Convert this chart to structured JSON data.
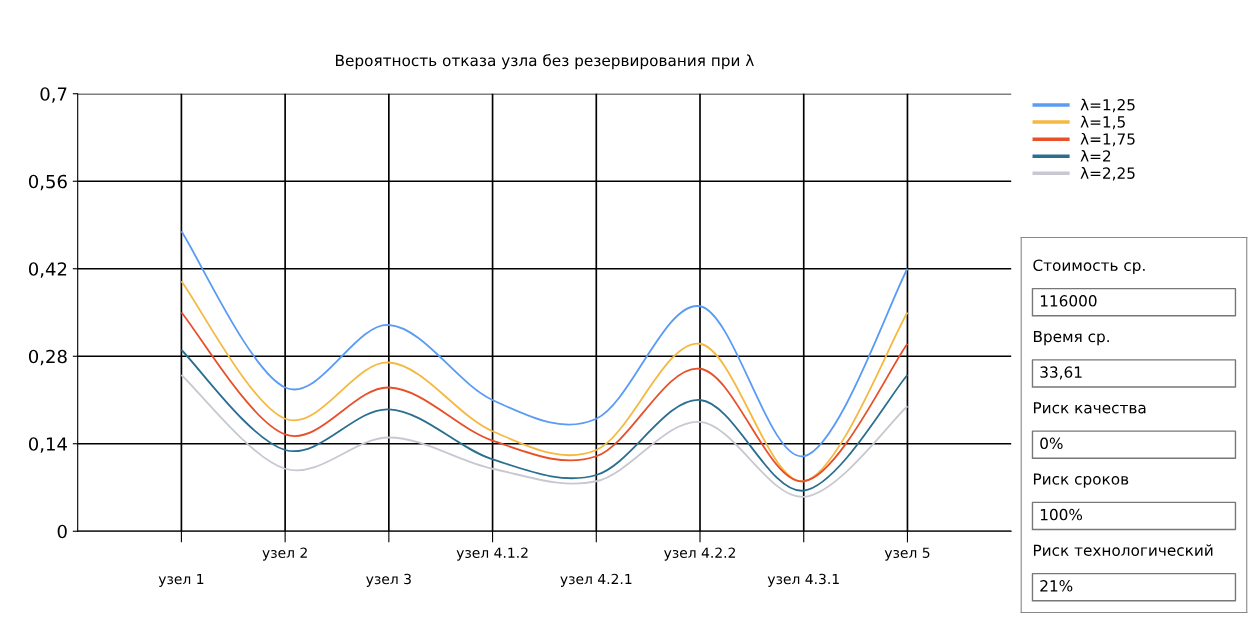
{
  "chart_data": [
    {
      "type": "line",
      "title": "Вероятность отказа узла без резервирования при λ",
      "categories": [
        "узел 1",
        "узел 2",
        "узел 3",
        "узел 4.1.2",
        "узел 4.2.1",
        "узел 4.2.2",
        "узел 4.3.1",
        "узел 5"
      ],
      "series": [
        {
          "name": "λ=1,25",
          "color": "#5a9bf5",
          "values": [
            0.48,
            0.23,
            0.33,
            0.21,
            0.18,
            0.36,
            0.12,
            0.42
          ]
        },
        {
          "name": "λ=1,5",
          "color": "#f5b942",
          "values": [
            0.4,
            0.18,
            0.27,
            0.16,
            0.13,
            0.3,
            0.08,
            0.35
          ]
        },
        {
          "name": "λ=1,75",
          "color": "#e8502a",
          "values": [
            0.35,
            0.155,
            0.23,
            0.145,
            0.12,
            0.26,
            0.08,
            0.3
          ]
        },
        {
          "name": "λ=2",
          "color": "#2a6f8f",
          "values": [
            0.29,
            0.13,
            0.195,
            0.115,
            0.09,
            0.21,
            0.065,
            0.25
          ]
        },
        {
          "name": "λ=2,25",
          "color": "#c8c8d2",
          "values": [
            0.25,
            0.1,
            0.15,
            0.1,
            0.08,
            0.175,
            0.055,
            0.2
          ]
        }
      ],
      "ylim": [
        0,
        0.7
      ],
      "yticks": [
        {
          "value": 0,
          "label": "0"
        },
        {
          "value": 0.14,
          "label": "0,14"
        },
        {
          "value": 0.28,
          "label": "0,28"
        },
        {
          "value": 0.42,
          "label": "0,42"
        },
        {
          "value": 0.56,
          "label": "0,56"
        },
        {
          "value": 0.7,
          "label": "0,7"
        }
      ],
      "grid": true,
      "legend": "top right",
      "marker": "none",
      "line_style": "solid"
    },
    {
      "type": "other",
      "annotations": [
        "Стоимость ср.",
        "116000",
        "Время ср.",
        "33,61",
        "Риск качества",
        "0%",
        "Риск сроков",
        "100%",
        "Риск технологический",
        "21%"
      ]
    }
  ]
}
